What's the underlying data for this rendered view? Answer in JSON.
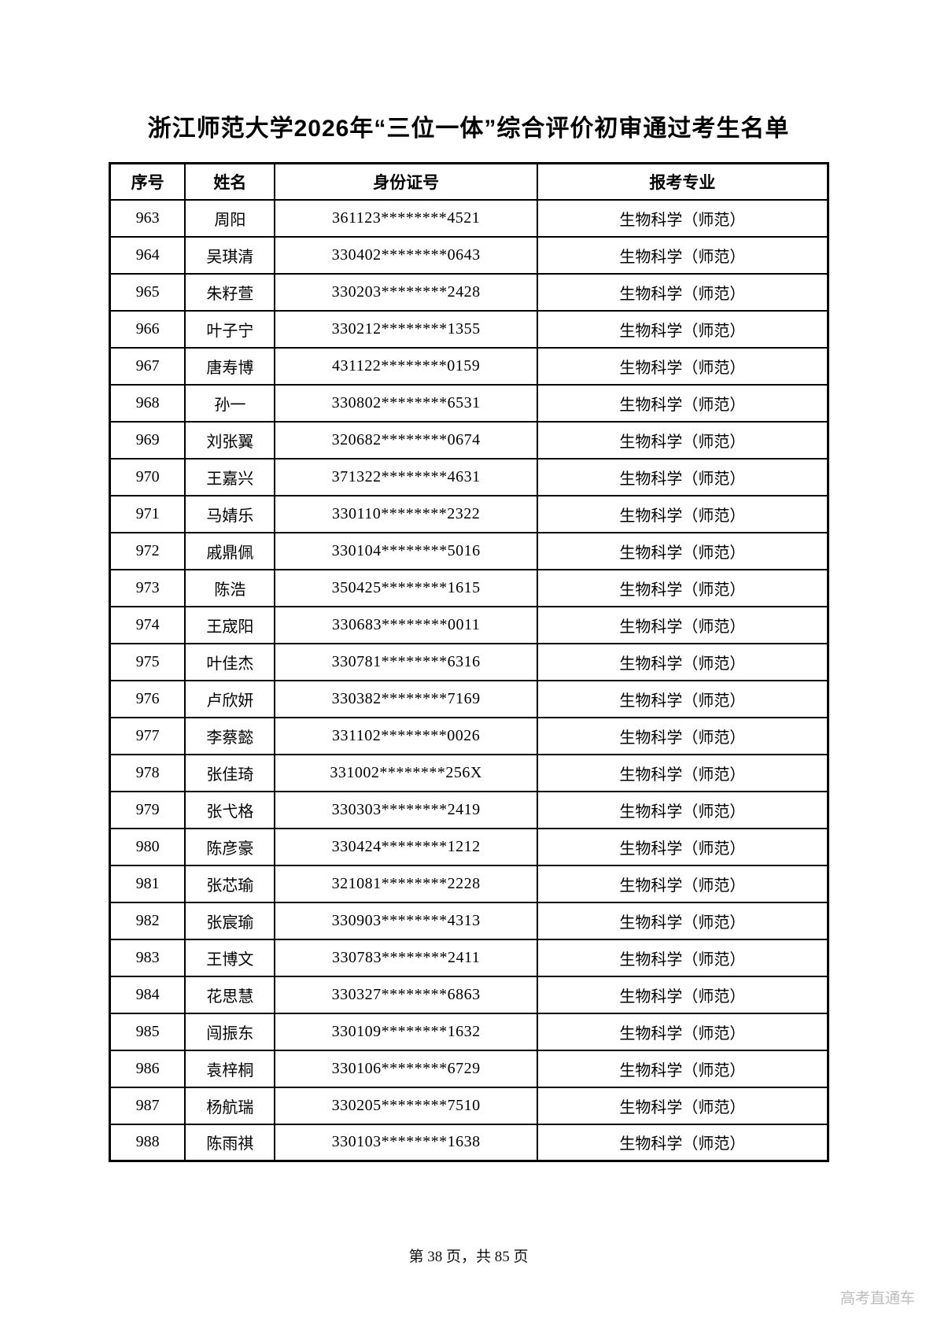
{
  "page": {
    "title": "浙江师范大学2026年“三位一体”综合评价初审通过考生名单",
    "footer": "第 38 页，共 85 页",
    "watermark": "高考直通车"
  },
  "table": {
    "headers": [
      "序号",
      "姓名",
      "身份证号",
      "报考专业"
    ],
    "rows": [
      [
        "963",
        "周阳",
        "361123********4521",
        "生物科学（师范）"
      ],
      [
        "964",
        "吴琪清",
        "330402********0643",
        "生物科学（师范）"
      ],
      [
        "965",
        "朱籽萱",
        "330203********2428",
        "生物科学（师范）"
      ],
      [
        "966",
        "叶子宁",
        "330212********1355",
        "生物科学（师范）"
      ],
      [
        "967",
        "唐寿博",
        "431122********0159",
        "生物科学（师范）"
      ],
      [
        "968",
        "孙一",
        "330802********6531",
        "生物科学（师范）"
      ],
      [
        "969",
        "刘张翼",
        "320682********0674",
        "生物科学（师范）"
      ],
      [
        "970",
        "王嘉兴",
        "371322********4631",
        "生物科学（师范）"
      ],
      [
        "971",
        "马婧乐",
        "330110********2322",
        "生物科学（师范）"
      ],
      [
        "972",
        "戚鼎佩",
        "330104********5016",
        "生物科学（师范）"
      ],
      [
        "973",
        "陈浩",
        "350425********1615",
        "生物科学（师范）"
      ],
      [
        "974",
        "王宬阳",
        "330683********0011",
        "生物科学（师范）"
      ],
      [
        "975",
        "叶佳杰",
        "330781********6316",
        "生物科学（师范）"
      ],
      [
        "976",
        "卢欣妍",
        "330382********7169",
        "生物科学（师范）"
      ],
      [
        "977",
        "李蔡懿",
        "331102********0026",
        "生物科学（师范）"
      ],
      [
        "978",
        "张佳琦",
        "331002********256X",
        "生物科学（师范）"
      ],
      [
        "979",
        "张弋格",
        "330303********2419",
        "生物科学（师范）"
      ],
      [
        "980",
        "陈彦豪",
        "330424********1212",
        "生物科学（师范）"
      ],
      [
        "981",
        "张芯瑜",
        "321081********2228",
        "生物科学（师范）"
      ],
      [
        "982",
        "张宸瑜",
        "330903********4313",
        "生物科学（师范）"
      ],
      [
        "983",
        "王博文",
        "330783********2411",
        "生物科学（师范）"
      ],
      [
        "984",
        "花思慧",
        "330327********6863",
        "生物科学（师范）"
      ],
      [
        "985",
        "闯振东",
        "330109********1632",
        "生物科学（师范）"
      ],
      [
        "986",
        "袁梓桐",
        "330106********6729",
        "生物科学（师范）"
      ],
      [
        "987",
        "杨航瑞",
        "330205********7510",
        "生物科学（师范）"
      ],
      [
        "988",
        "陈雨祺",
        "330103********1638",
        "生物科学（师范）"
      ]
    ]
  }
}
